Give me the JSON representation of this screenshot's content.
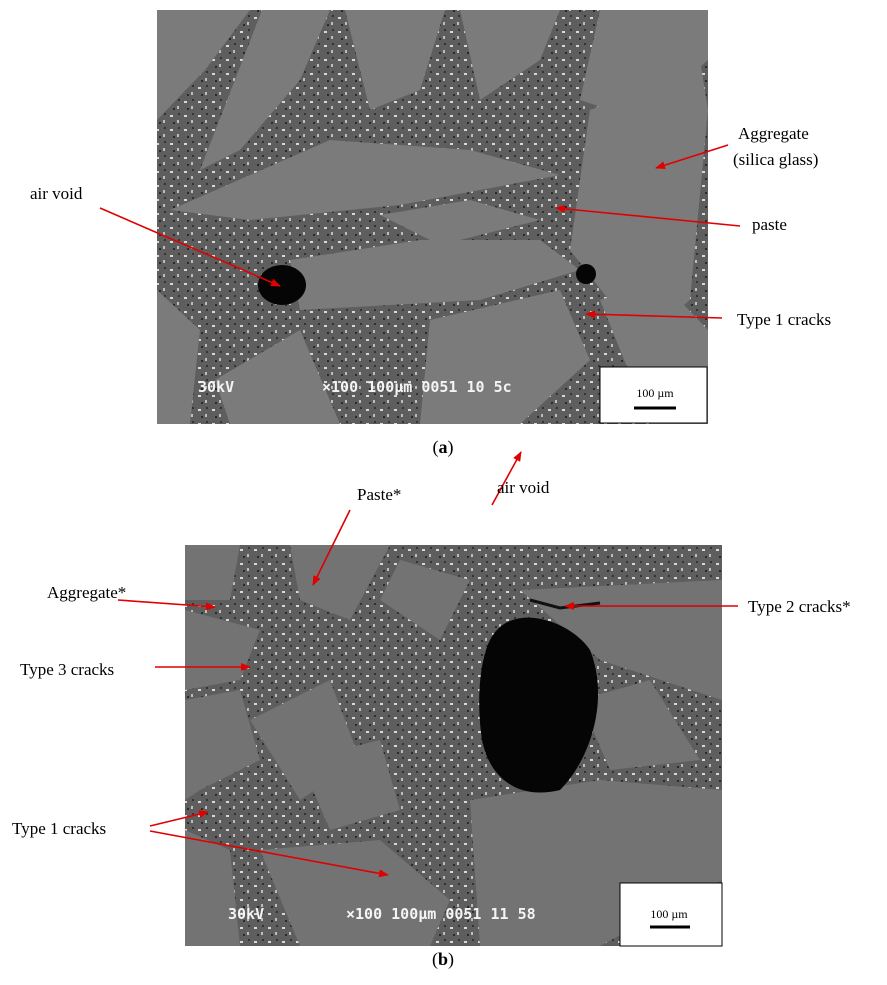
{
  "panels": [
    {
      "caption": [
        "(",
        "a",
        ")"
      ],
      "labels": [
        "air void",
        "Aggregate",
        "(silica glass)",
        "paste",
        "Type 1 cracks"
      ],
      "scale_bar": "100 µm",
      "sem_text": [
        "30kV",
        "×100 100µm 0051 10 5c"
      ]
    },
    {
      "caption": [
        "(",
        "b",
        ")"
      ],
      "labels": [
        "Paste*",
        "air void",
        "Aggregate*",
        "Type 2 cracks*",
        "Type 3 cracks",
        "Type 1 cracks"
      ],
      "scale_bar": "100 µm",
      "sem_text": [
        "30kV",
        "×100 100µm 0051 11 58"
      ]
    }
  ]
}
